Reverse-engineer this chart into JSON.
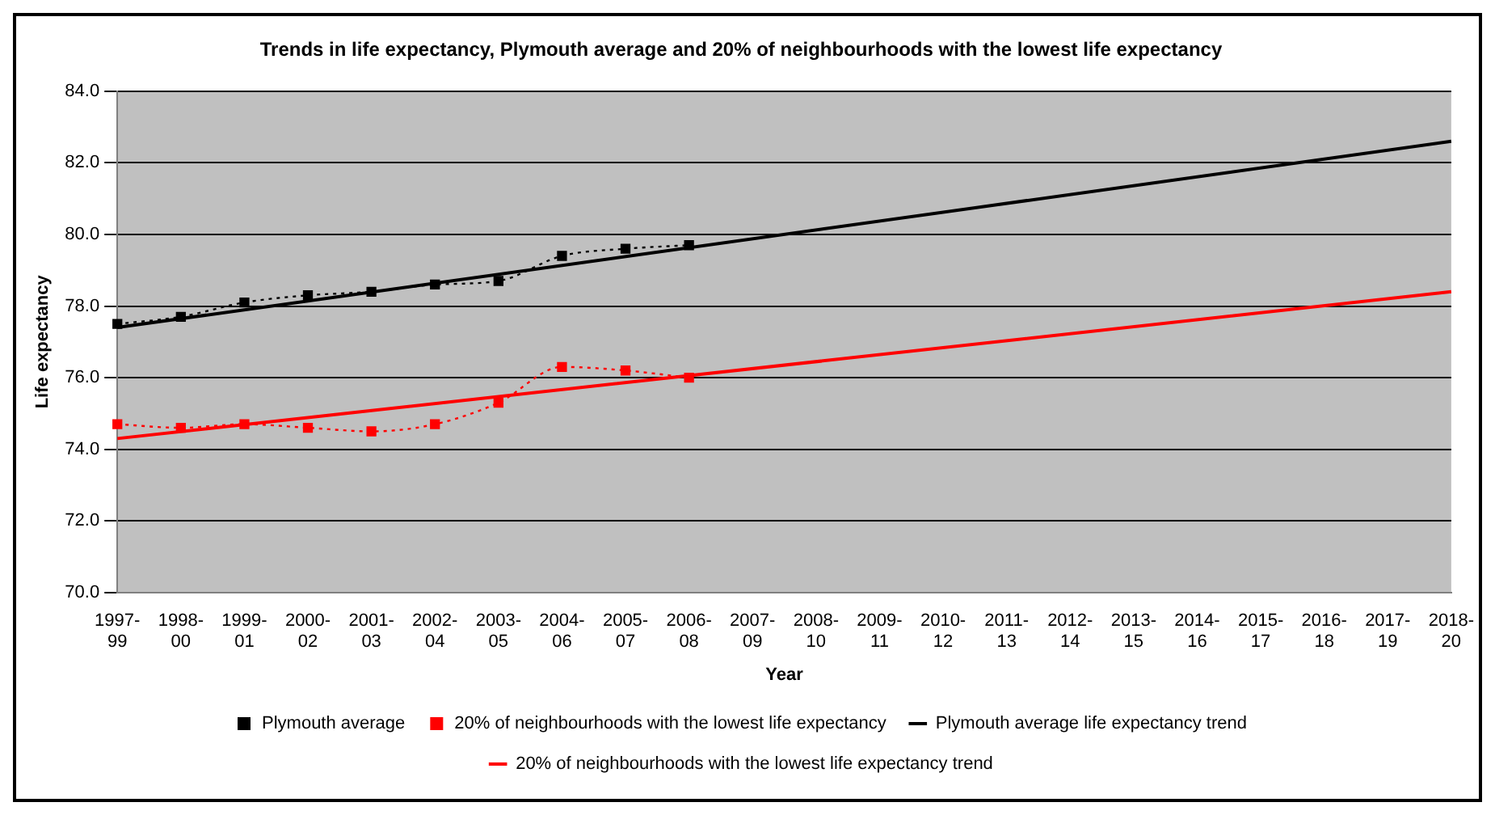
{
  "chart_data": {
    "type": "line",
    "title": "Trends in life expectancy, Plymouth average and 20% of neighbourhoods with the lowest life expectancy",
    "xlabel": "Year",
    "ylabel": "Life expectancy",
    "categories": [
      "1997-99",
      "1998-00",
      "1999-01",
      "2000-02",
      "2001-03",
      "2002-04",
      "2003-05",
      "2004-06",
      "2005-07",
      "2006-08",
      "2007-09",
      "2008-10",
      "2009-11",
      "2010-12",
      "2011-13",
      "2012-14",
      "2013-15",
      "2014-16",
      "2015-17",
      "2016-18",
      "2017-19",
      "2018-20"
    ],
    "series": [
      {
        "name": "Plymouth average",
        "color": "#000000",
        "marker": "square",
        "line_style": "dotted",
        "values": [
          77.5,
          77.7,
          78.1,
          78.3,
          78.4,
          78.6,
          78.7,
          79.4,
          79.6,
          79.7,
          null,
          null,
          null,
          null,
          null,
          null,
          null,
          null,
          null,
          null,
          null,
          null
        ]
      },
      {
        "name": "20% of neighbourhoods with the lowest life expectancy",
        "color": "#ff0000",
        "marker": "square",
        "line_style": "dotted",
        "values": [
          74.7,
          74.6,
          74.7,
          74.6,
          74.5,
          74.7,
          75.3,
          76.3,
          76.2,
          76.0,
          null,
          null,
          null,
          null,
          null,
          null,
          null,
          null,
          null,
          null,
          null,
          null
        ]
      },
      {
        "name": "Plymouth average life expectancy trend",
        "color": "#000000",
        "marker": "none",
        "line_style": "solid",
        "values": [
          77.4,
          null,
          null,
          null,
          null,
          null,
          null,
          null,
          null,
          null,
          null,
          null,
          null,
          null,
          null,
          null,
          null,
          null,
          null,
          null,
          null,
          82.6
        ]
      },
      {
        "name": "20% of neighbourhoods with the lowest life expectancy trend",
        "color": "#ff0000",
        "marker": "none",
        "line_style": "solid",
        "values": [
          74.3,
          null,
          null,
          null,
          null,
          null,
          null,
          null,
          null,
          null,
          null,
          null,
          null,
          null,
          null,
          null,
          null,
          null,
          null,
          null,
          null,
          78.4
        ]
      }
    ],
    "ylim": [
      70,
      84
    ],
    "yticks": [
      {
        "value": 70,
        "label": "70.0"
      },
      {
        "value": 72,
        "label": "72.0"
      },
      {
        "value": 74,
        "label": "74.0"
      },
      {
        "value": 76,
        "label": "76.0"
      },
      {
        "value": 78,
        "label": "78.0"
      },
      {
        "value": 80,
        "label": "80.0"
      },
      {
        "value": 82,
        "label": "82.0"
      },
      {
        "value": 84,
        "label": "84.0"
      }
    ],
    "grid": "y",
    "legend": "bottom"
  }
}
